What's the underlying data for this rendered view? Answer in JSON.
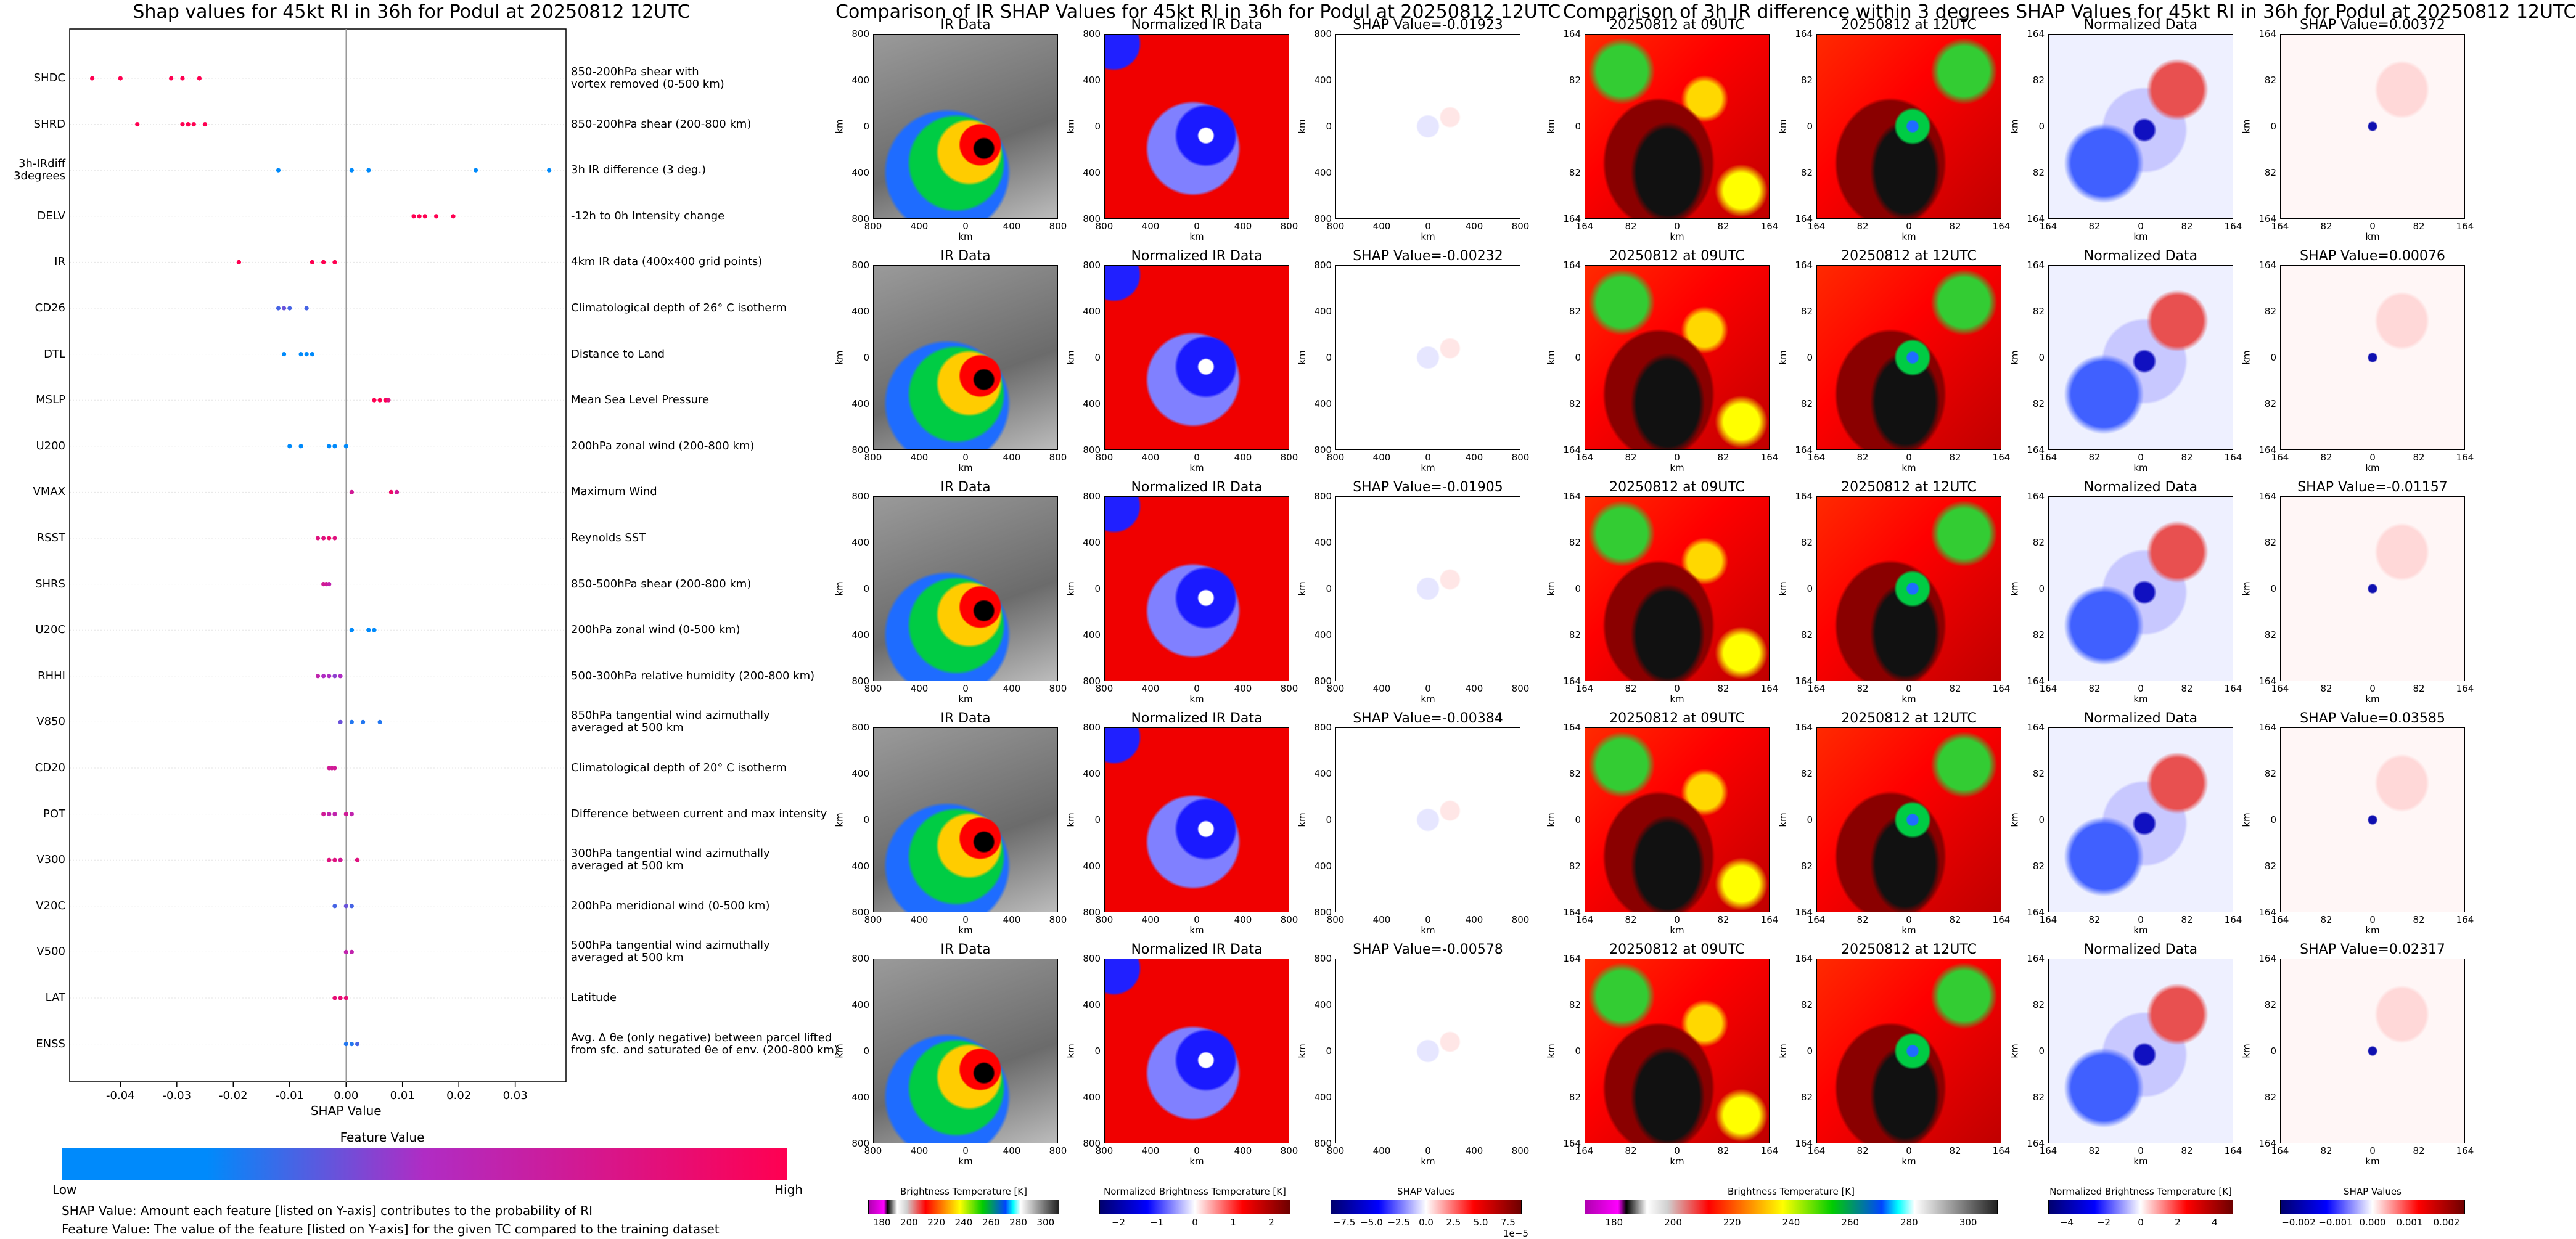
{
  "chart_data": [
    {
      "type": "scatter",
      "title": "Shap values for 45kt RI in 36h for Podul at 20250812 12UTC",
      "xlabel": "SHAP Value",
      "xlim": [
        -0.049,
        0.039
      ],
      "xticks": [
        "-0.04",
        "-0.03",
        "-0.02",
        "-0.01",
        "0.00",
        "0.01",
        "0.02",
        "0.03"
      ],
      "xtick_values": [
        -0.04,
        -0.03,
        -0.02,
        -0.01,
        0.0,
        0.01,
        0.02,
        0.03
      ],
      "features": [
        {
          "name": "SHDC",
          "desc": "850-200hPa shear with\nvortex removed (0-500 km)",
          "points": [
            [
              -0.045,
              1.0
            ],
            [
              -0.04,
              1.0
            ],
            [
              -0.031,
              1.0
            ],
            [
              -0.029,
              1.0
            ],
            [
              -0.026,
              1.0
            ]
          ]
        },
        {
          "name": "SHRD",
          "desc": "850-200hPa shear (200-800 km)",
          "points": [
            [
              -0.037,
              1.0
            ],
            [
              -0.029,
              1.0
            ],
            [
              -0.028,
              1.0
            ],
            [
              -0.027,
              1.0
            ],
            [
              -0.025,
              1.0
            ]
          ]
        },
        {
          "name": "3h-IRdiff\n3degrees",
          "desc": "3h IR difference (3 deg.)",
          "points": [
            [
              -0.012,
              0.0
            ],
            [
              0.001,
              0.0
            ],
            [
              0.004,
              0.0
            ],
            [
              0.023,
              0.0
            ],
            [
              0.036,
              0.0
            ]
          ]
        },
        {
          "name": "DELV",
          "desc": "-12h to 0h Intensity change",
          "points": [
            [
              0.012,
              1.0
            ],
            [
              0.013,
              1.0
            ],
            [
              0.014,
              1.0
            ],
            [
              0.016,
              1.0
            ],
            [
              0.019,
              1.0
            ]
          ]
        },
        {
          "name": "IR",
          "desc": "4km IR data (400x400 grid points)",
          "points": [
            [
              -0.019,
              1.0
            ],
            [
              -0.006,
              1.0
            ],
            [
              -0.004,
              1.0
            ],
            [
              -0.002,
              1.0
            ]
          ]
        },
        {
          "name": "CD26",
          "desc": "Climatological depth of 26° C isotherm",
          "points": [
            [
              -0.012,
              0.2
            ],
            [
              -0.011,
              0.3
            ],
            [
              -0.01,
              0.2
            ],
            [
              -0.007,
              0.2
            ]
          ]
        },
        {
          "name": "DTL",
          "desc": "Distance to Land",
          "points": [
            [
              -0.011,
              0.0
            ],
            [
              -0.008,
              0.0
            ],
            [
              -0.007,
              0.0
            ],
            [
              -0.006,
              0.0
            ]
          ]
        },
        {
          "name": "MSLP",
          "desc": "Mean Sea Level Pressure",
          "points": [
            [
              0.005,
              1.0
            ],
            [
              0.006,
              1.0
            ],
            [
              0.007,
              1.0
            ],
            [
              0.0075,
              0.8
            ]
          ]
        },
        {
          "name": "U200",
          "desc": "200hPa zonal wind (200-800 km)",
          "points": [
            [
              -0.01,
              0.0
            ],
            [
              -0.008,
              0.0
            ],
            [
              -0.003,
              0.0
            ],
            [
              -0.002,
              0.0
            ],
            [
              0.0,
              0.0
            ]
          ]
        },
        {
          "name": "VMAX",
          "desc": "Maximum Wind",
          "points": [
            [
              0.001,
              0.7
            ],
            [
              0.008,
              0.9
            ],
            [
              0.009,
              0.7
            ]
          ]
        },
        {
          "name": "RSST",
          "desc": "Reynolds SST",
          "points": [
            [
              -0.005,
              0.8
            ],
            [
              -0.004,
              0.8
            ],
            [
              -0.003,
              0.9
            ],
            [
              -0.002,
              0.8
            ]
          ]
        },
        {
          "name": "SHRS",
          "desc": "850-500hPa shear (200-800 km)",
          "points": [
            [
              -0.004,
              0.7
            ],
            [
              -0.0035,
              0.7
            ],
            [
              -0.003,
              0.6
            ]
          ]
        },
        {
          "name": "U20C",
          "desc": "200hPa zonal wind (0-500 km)",
          "points": [
            [
              0.001,
              0.0
            ],
            [
              0.004,
              0.0
            ],
            [
              0.005,
              0.0
            ]
          ]
        },
        {
          "name": "RHHI",
          "desc": "500-300hPa relative humidity (200-800 km)",
          "points": [
            [
              -0.005,
              0.6
            ],
            [
              -0.004,
              0.5
            ],
            [
              -0.003,
              0.5
            ],
            [
              -0.002,
              0.4
            ],
            [
              -0.001,
              0.5
            ]
          ]
        },
        {
          "name": "V850",
          "desc": "850hPa tangential wind azimuthally\naveraged at 500 km",
          "points": [
            [
              -0.001,
              0.3
            ],
            [
              0.001,
              0.1
            ],
            [
              0.003,
              0.1
            ],
            [
              0.006,
              0.1
            ]
          ]
        },
        {
          "name": "CD20",
          "desc": "Climatological depth of 20° C isotherm",
          "points": [
            [
              -0.003,
              0.7
            ],
            [
              -0.0025,
              0.7
            ],
            [
              -0.002,
              0.7
            ]
          ]
        },
        {
          "name": "POT",
          "desc": "Difference between current and max intensity",
          "points": [
            [
              -0.004,
              0.7
            ],
            [
              -0.003,
              0.6
            ],
            [
              -0.002,
              0.6
            ],
            [
              0.0,
              0.7
            ],
            [
              0.001,
              0.6
            ]
          ]
        },
        {
          "name": "V300",
          "desc": "300hPa tangential wind azimuthally\naveraged at 500 km",
          "points": [
            [
              -0.003,
              0.8
            ],
            [
              -0.002,
              0.8
            ],
            [
              -0.001,
              0.7
            ],
            [
              0.002,
              0.8
            ]
          ]
        },
        {
          "name": "V20C",
          "desc": "200hPa meridional wind (0-500 km)",
          "points": [
            [
              -0.002,
              0.2
            ],
            [
              0.0,
              0.3
            ],
            [
              0.001,
              0.2
            ]
          ]
        },
        {
          "name": "V500",
          "desc": "500hPa tangential wind azimuthally\naveraged at 500 km",
          "points": [
            [
              0.0,
              0.6
            ],
            [
              0.001,
              0.6
            ]
          ]
        },
        {
          "name": "LAT",
          "desc": "Latitude",
          "points": [
            [
              -0.002,
              0.85
            ],
            [
              -0.001,
              0.85
            ],
            [
              0.0,
              0.85
            ]
          ]
        },
        {
          "name": "ENSS",
          "desc": "Avg. Δ θe (only negative) between parcel lifted\nfrom sfc. and saturated θe of env. (200-800 km)",
          "points": [
            [
              0.0,
              0.1
            ],
            [
              0.001,
              0.1
            ],
            [
              0.002,
              0.2
            ]
          ]
        }
      ],
      "colorbar": {
        "title": "Feature Value",
        "low": "Low",
        "high": "High",
        "colors": [
          "#008afb",
          "#b02cc4",
          "#ff0051"
        ]
      },
      "notes": [
        "SHAP Value: Amount each feature [listed on Y-axis] contributes to the probability of RI",
        "Feature Value: The value of the feature [listed on Y-axis] for the given TC compared to the training dataset"
      ]
    },
    {
      "type": "heatmap",
      "title": "Comparison of IR SHAP Values for 45kt RI in 36h for Podul at 20250812 12UTC",
      "column_titles": [
        "IR Data",
        "Normalized IR Data"
      ],
      "shap_titles": [
        "SHAP Value=-0.01923",
        "SHAP Value=-0.00232",
        "SHAP Value=-0.01905",
        "SHAP Value=-0.00384",
        "SHAP Value=-0.00578"
      ],
      "xticks": [
        "800",
        "400",
        "0",
        "400",
        "800"
      ],
      "yticks": [
        "800",
        "400",
        "0",
        "400",
        "800"
      ],
      "xlabel": "km",
      "ylabel": "km",
      "colorbars": [
        {
          "label": "Brightness Temperature [K]",
          "ticks": [
            "180",
            "200",
            "220",
            "240",
            "260",
            "280",
            "300"
          ]
        },
        {
          "label": "Normalized Brightness Temperature [K]",
          "ticks": [
            "−2",
            "−1",
            "0",
            "1",
            "2"
          ]
        },
        {
          "label": "SHAP Values",
          "ticks": [
            "−7.5",
            "−5.0",
            "−2.5",
            "0.0",
            "2.5",
            "5.0",
            "7.5"
          ],
          "offset": "1e−5"
        }
      ]
    },
    {
      "type": "heatmap",
      "title": "Comparison of 3h IR difference within 3 degrees SHAP Values for 45kt RI in 36h for Podul at 20250812 12UTC",
      "column_titles": [
        "20250812 at 09UTC",
        "20250812 at 12UTC",
        "Normalized Data"
      ],
      "shap_titles": [
        "SHAP Value=0.00372",
        "SHAP Value=0.00076",
        "SHAP Value=-0.01157",
        "SHAP Value=0.03585",
        "SHAP Value=0.02317"
      ],
      "xticks": [
        "164",
        "82",
        "0",
        "82",
        "164"
      ],
      "yticks": [
        "164",
        "82",
        "0",
        "82",
        "164"
      ],
      "xlabel": "km",
      "ylabel": "km",
      "colorbars": [
        {
          "label": "Brightness Temperature [K]",
          "ticks": [
            "180",
            "200",
            "220",
            "240",
            "260",
            "280",
            "300"
          ]
        },
        {
          "label": "Normalized Brightness Temperature [K]",
          "ticks": [
            "−4",
            "−2",
            "0",
            "2",
            "4"
          ]
        },
        {
          "label": "SHAP Values",
          "ticks": [
            "−0.002",
            "−0.001",
            "0.000",
            "0.001",
            "0.002"
          ]
        }
      ]
    }
  ]
}
